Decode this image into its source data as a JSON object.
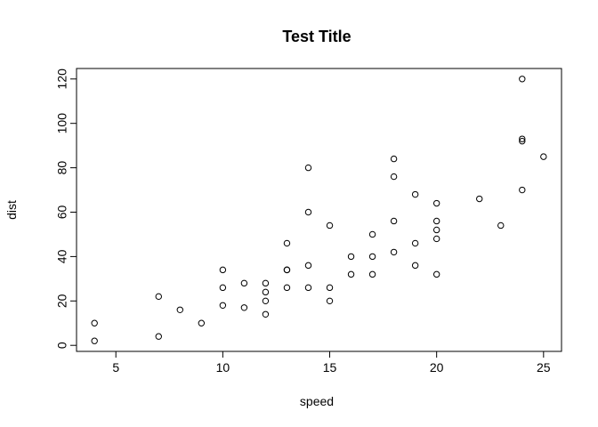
{
  "chart_data": {
    "type": "scatter",
    "title": "Test Title",
    "xlabel": "speed",
    "ylabel": "dist",
    "xlim": [
      3.16,
      25.84
    ],
    "ylim": [
      -2.72,
      124.72
    ],
    "xticks": [
      5,
      10,
      15,
      20,
      25
    ],
    "yticks": [
      0,
      20,
      40,
      60,
      80,
      100,
      120
    ],
    "grid": false,
    "point_color": "#000000",
    "background": "#ffffff",
    "x": [
      4,
      4,
      7,
      7,
      8,
      9,
      10,
      10,
      10,
      11,
      11,
      12,
      12,
      12,
      12,
      13,
      13,
      13,
      13,
      14,
      14,
      14,
      14,
      15,
      15,
      15,
      16,
      16,
      17,
      17,
      17,
      18,
      18,
      18,
      18,
      19,
      19,
      19,
      20,
      20,
      20,
      20,
      20,
      22,
      23,
      24,
      24,
      24,
      24,
      25
    ],
    "y": [
      2,
      10,
      4,
      22,
      16,
      10,
      18,
      26,
      34,
      17,
      28,
      14,
      20,
      24,
      28,
      26,
      34,
      34,
      46,
      26,
      36,
      60,
      80,
      20,
      26,
      54,
      32,
      40,
      32,
      40,
      50,
      42,
      56,
      76,
      84,
      36,
      46,
      68,
      32,
      48,
      52,
      56,
      64,
      66,
      54,
      70,
      92,
      93,
      120,
      85
    ]
  }
}
